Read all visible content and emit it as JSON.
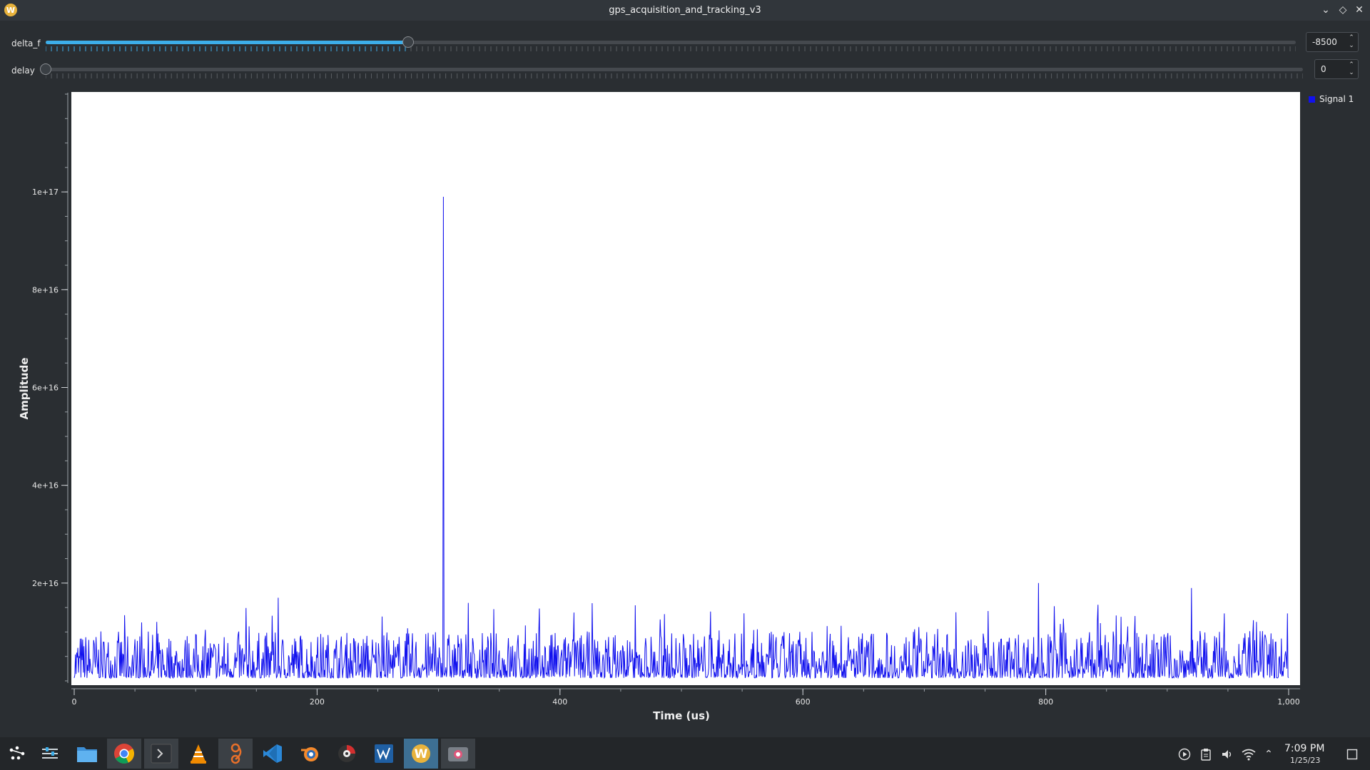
{
  "window": {
    "title": "gps_acquisition_and_tracking_v3",
    "app_icon_glyph": "W",
    "controls": [
      "chevron-down-icon",
      "restore-icon",
      "close-icon"
    ]
  },
  "controls": {
    "delta_f": {
      "label": "delta_f",
      "value": "-8500",
      "fraction": 0.29
    },
    "delay": {
      "label": "delay",
      "value": "0",
      "fraction": 0.0
    }
  },
  "legend": {
    "series": "Signal 1",
    "color": "#1111ee"
  },
  "chart_data": {
    "type": "line",
    "xlabel": "Time (us)",
    "ylabel": "Amplitude",
    "xlim": [
      0,
      1000
    ],
    "ylim": [
      0,
      1.2e+17
    ],
    "x_ticks": [
      0,
      200,
      400,
      600,
      800,
      1000
    ],
    "x_tick_labels": [
      "0",
      "200",
      "400",
      "600",
      "800",
      "1,000"
    ],
    "y_ticks": [
      2e+16,
      4e+16,
      6e+16,
      8e+16,
      1e+17
    ],
    "y_tick_labels": [
      "2e+16",
      "4e+16",
      "6e+16",
      "8e+16",
      "1e+17"
    ],
    "grid": false,
    "legend_position": "right",
    "series": [
      {
        "name": "Signal 1",
        "color": "#1111ee",
        "noise_floor": 3000000000000000.0,
        "noise_peak_max": 2e+16,
        "notable_points": [
          {
            "x": 304,
            "y": 9.9e+16
          },
          {
            "x": 794,
            "y": 2e+16
          },
          {
            "x": 920,
            "y": 1.9e+16
          },
          {
            "x": 168,
            "y": 1.7e+16
          }
        ]
      }
    ]
  },
  "taskbar": {
    "apps": [
      "application-launcher-icon",
      "system-settings-icon",
      "file-manager-icon",
      "chrome-icon",
      "terminal-icon",
      "vlc-icon",
      "gnuradio-icon",
      "vscode-icon",
      "blender-icon",
      "disk-utility-icon",
      "wireshark-icon",
      "gnuradio-companion-icon",
      "screenshot-icon"
    ],
    "tray": [
      "media-player-icon",
      "clipboard-icon",
      "volume-icon",
      "wifi-icon",
      "tray-expand-icon"
    ],
    "clock": {
      "time": "7:09 PM",
      "date": "1/25/23"
    }
  }
}
